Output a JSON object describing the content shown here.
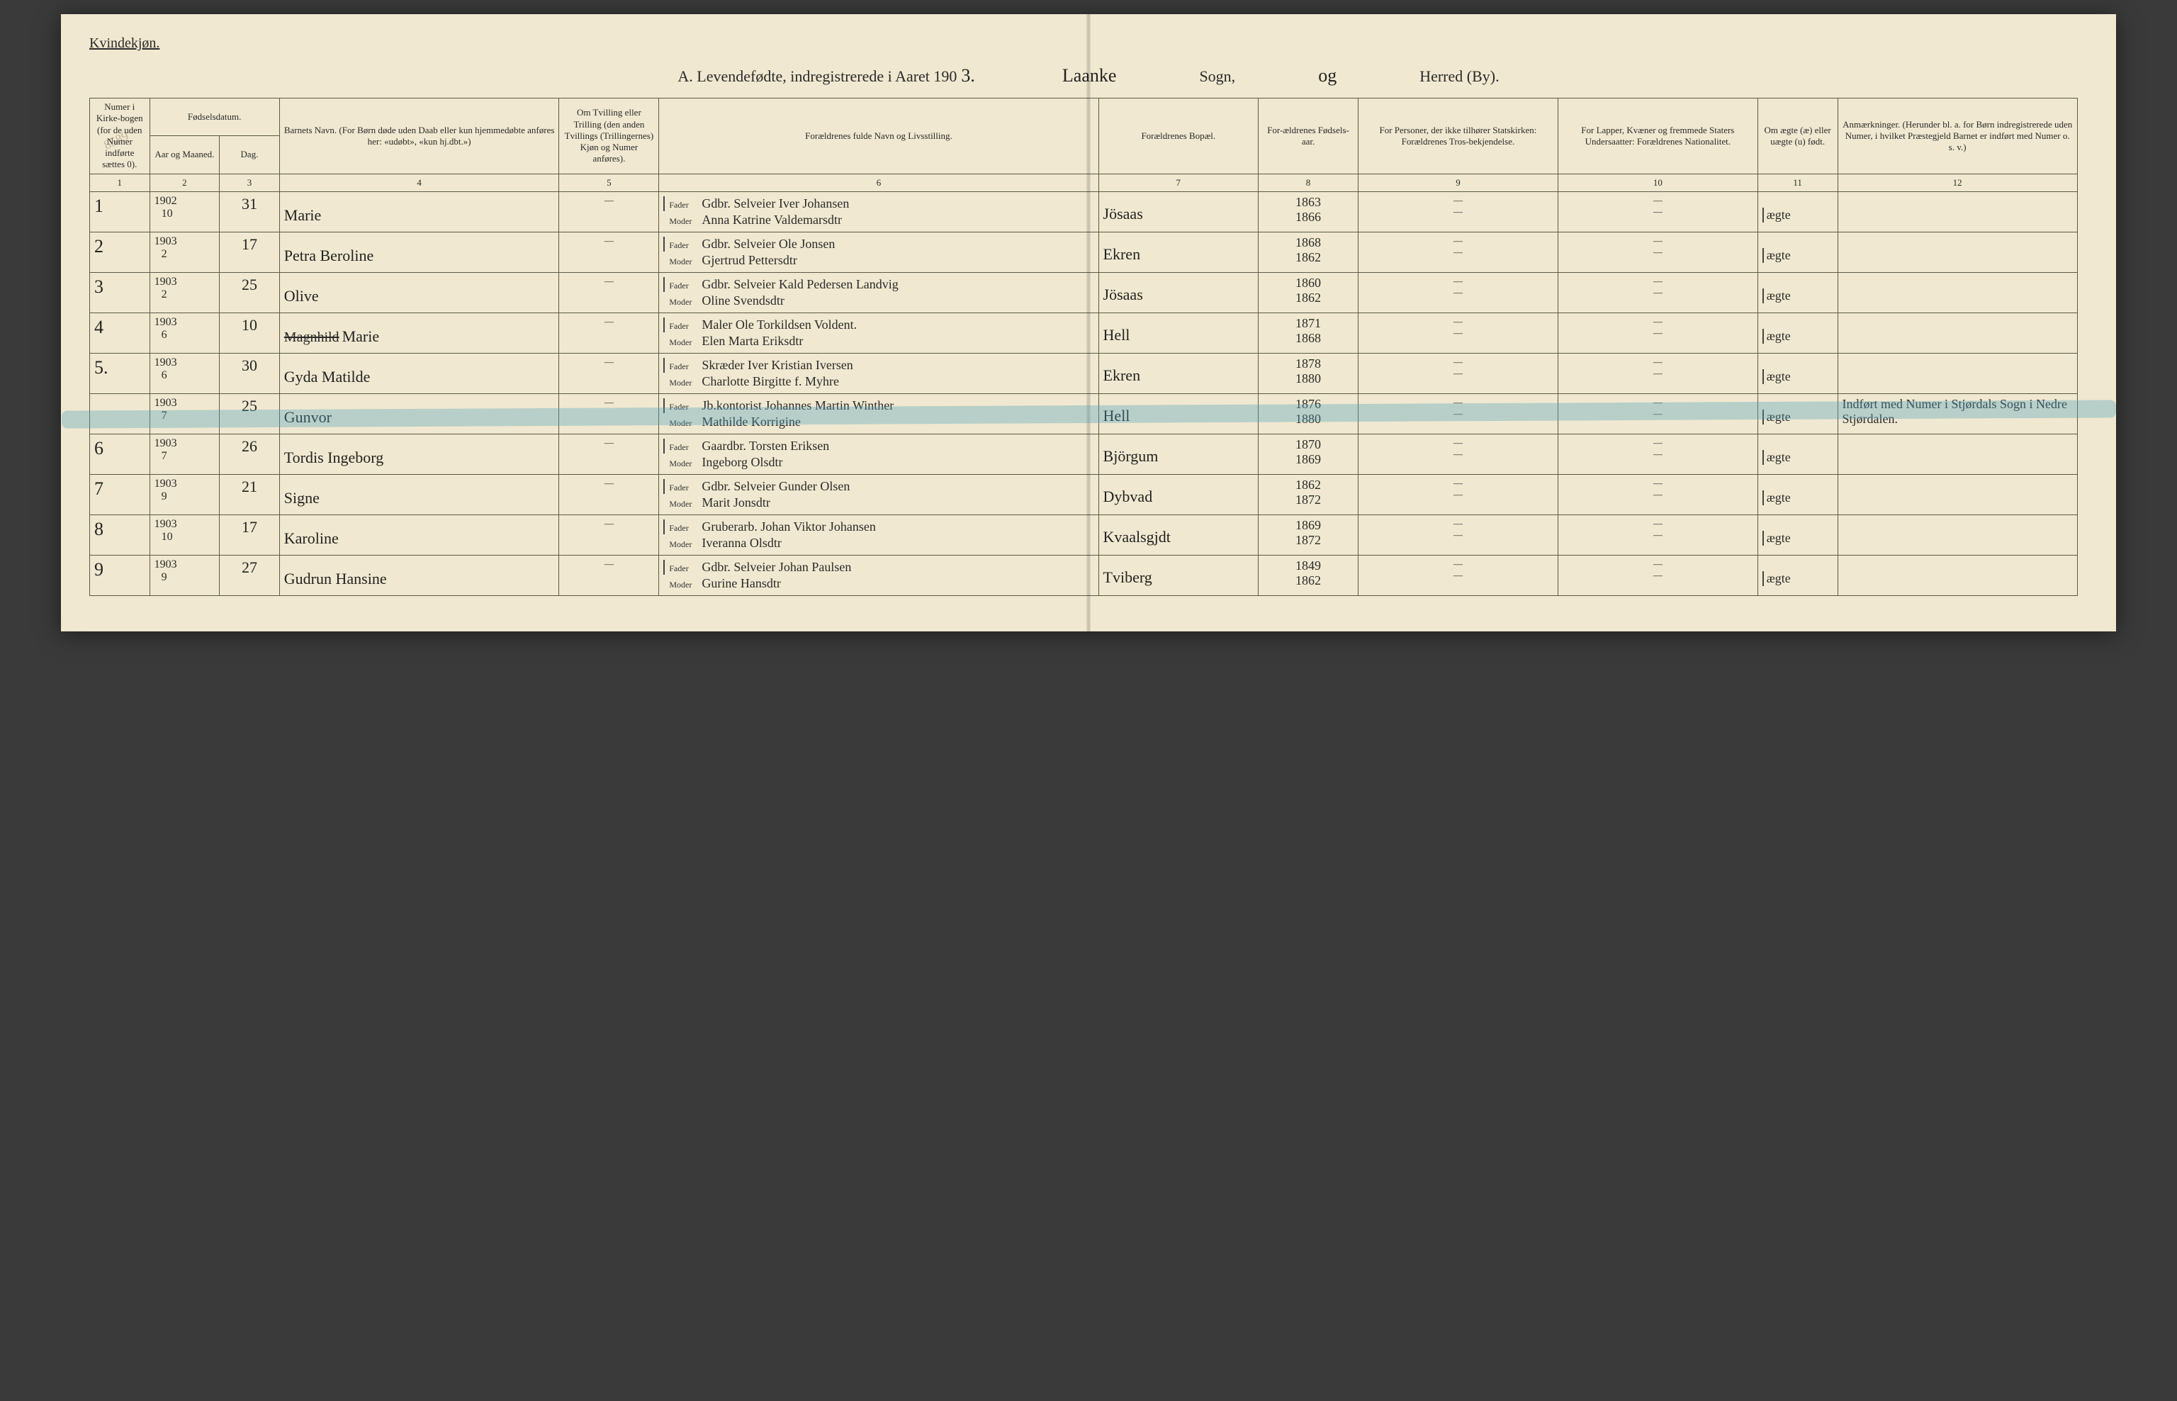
{
  "colors": {
    "paper": "#f0e8d0",
    "ink": "#2a2a2a",
    "rule": "#5a5a48",
    "highlight": "rgba(80,160,190,0.35)",
    "background": "#3a3a3a"
  },
  "typography": {
    "printed_font": "Georgia, Times New Roman, serif",
    "script_font": "Brush Script MT, Segoe Script, cursive",
    "header_fontsize_pt": 14,
    "title_fontsize_pt": 16,
    "cell_fontsize_pt": 10,
    "script_fontsize_pt": 16
  },
  "header": {
    "gender": "Kvindekjøn.",
    "title_prefix": "A.  Levendefødte, indregistrerede i Aaret 190",
    "year_suffix": "3.",
    "parish_script": "Laanke",
    "parish_label": "Sogn,",
    "district_script": "og",
    "district_label": "Herred (By)."
  },
  "archive_stamp": "8589",
  "columns": {
    "c1": "Numer i Kirke-bogen (for de uden Numer indførte sættes 0).",
    "c2_group": "Fødselsdatum.",
    "c2a": "Aar og Maaned.",
    "c2b": "Dag.",
    "c4": "Barnets Navn.\n(For Børn døde uden Daab eller kun hjemmedøbte anføres her: «udøbt», «kun hj.dbt.»)",
    "c5": "Om Tvilling eller Trilling (den anden Tvillings (Trillingernes) Kjøn og Numer anføres).",
    "c6": "Forældrenes fulde Navn og Livsstilling.",
    "c7": "Forældrenes Bopæl.",
    "c8": "For-ældrenes Fødsels-aar.",
    "c9": "For Personer, der ikke tilhører Statskirken: Forældrenes Tros-bekjendelse.",
    "c10": "For Lapper, Kvæner og fremmede Staters Undersaatter: Forældrenes Nationalitet.",
    "c11": "Om ægte (æ) eller uægte (u) født.",
    "c12": "Anmærkninger.\n(Herunder bl. a. for Børn indregistrerede uden Numer, i hvilket Præstegjeld Barnet er indført med Numer o. s. v.)"
  },
  "colnums": [
    "1",
    "2",
    "3",
    "4",
    "5",
    "6",
    "7",
    "8",
    "9",
    "10",
    "11",
    "12"
  ],
  "parent_roles": {
    "father": "Fader",
    "mother": "Moder"
  },
  "entries": [
    {
      "num": "1",
      "year": "1902",
      "month": "10",
      "day": "31",
      "child": "Marie",
      "father": "Gdbr. Selveier Iver Johansen",
      "mother": "Anna Katrine Valdemarsdtr",
      "residence": "Jösaas",
      "father_by": "1863",
      "mother_by": "1866",
      "col9": "—",
      "col10": "—",
      "legit": "ægte",
      "notes": ""
    },
    {
      "num": "2",
      "year": "1903",
      "month": "2",
      "day": "17",
      "child": "Petra Beroline",
      "father": "Gdbr. Selveier Ole Jonsen",
      "mother": "Gjertrud Pettersdtr",
      "residence": "Ekren",
      "father_by": "1868",
      "mother_by": "1862",
      "col9": "—",
      "col10": "—",
      "legit": "ægte",
      "notes": ""
    },
    {
      "num": "3",
      "year": "1903",
      "month": "2",
      "day": "25",
      "child": "Olive",
      "father": "Gdbr. Selveier Kald Pedersen Landvig",
      "mother": "Oline Svendsdtr",
      "residence": "Jösaas",
      "father_by": "1860",
      "mother_by": "1862",
      "col9": "—",
      "col10": "—",
      "legit": "ægte",
      "notes": ""
    },
    {
      "num": "4",
      "year": "1903",
      "month": "6",
      "day": "10",
      "child_struck": "Magnhild",
      "child": "Marie",
      "father": "Maler Ole Torkildsen Voldent.",
      "mother": "Elen Marta Eriksdtr",
      "residence": "Hell",
      "father_by": "1871",
      "mother_by": "1868",
      "col9": "—",
      "col10": "—",
      "legit": "ægte",
      "notes": ""
    },
    {
      "num": "5.",
      "year": "1903",
      "month": "6",
      "day": "30",
      "child": "Gyda Matilde",
      "father": "Skræder Iver Kristian Iversen",
      "mother": "Charlotte Birgitte f. Myhre",
      "residence": "Ekren",
      "father_by": "1878",
      "mother_by": "1880",
      "col9": "—",
      "col10": "—",
      "legit": "ægte",
      "notes": ""
    },
    {
      "highlight": true,
      "num": "",
      "year": "1903",
      "month": "7",
      "day": "25",
      "child": "Gunvor",
      "father": "Jb.kontorist Johannes Martin Winther",
      "mother": "Mathilde Korrigine",
      "residence": "Hell",
      "father_by": "1876",
      "mother_by": "1880",
      "col9": "—",
      "col10": "—",
      "legit": "ægte",
      "notes": "Indført med Numer i Stjørdals Sogn i Nedre Stjørdalen."
    },
    {
      "num": "6",
      "year": "1903",
      "month": "7",
      "day": "26",
      "child": "Tordis Ingeborg",
      "father": "Gaardbr. Torsten Eriksen",
      "mother": "Ingeborg Olsdtr",
      "residence": "Björgum",
      "father_by": "1870",
      "mother_by": "1869",
      "col9": "—",
      "col10": "—",
      "legit": "ægte",
      "notes": ""
    },
    {
      "num": "7",
      "year": "1903",
      "month": "9",
      "day": "21",
      "child": "Signe",
      "father": "Gdbr. Selveier Gunder Olsen",
      "mother": "Marit Jonsdtr",
      "residence": "Dybvad",
      "father_by": "1862",
      "mother_by": "1872",
      "col9": "—",
      "col10": "—",
      "legit": "ægte",
      "notes": ""
    },
    {
      "num": "8",
      "year": "1903",
      "month": "10",
      "day": "17",
      "child": "Karoline",
      "father": "Gruberarb. Johan Viktor Johansen",
      "mother": "Iveranna Olsdtr",
      "residence": "Kvaalsgjdt",
      "father_by": "1869",
      "mother_by": "1872",
      "col9": "—",
      "col10": "—",
      "legit": "ægte",
      "notes": ""
    },
    {
      "num": "9",
      "year": "1903",
      "month": "9",
      "day": "27",
      "child": "Gudrun Hansine",
      "father": "Gdbr. Selveier Johan Paulsen",
      "mother": "Gurine Hansdtr",
      "residence": "Tviberg",
      "father_by": "1849",
      "mother_by": "1862",
      "col9": "—",
      "col10": "—",
      "legit": "ægte",
      "notes": ""
    }
  ]
}
